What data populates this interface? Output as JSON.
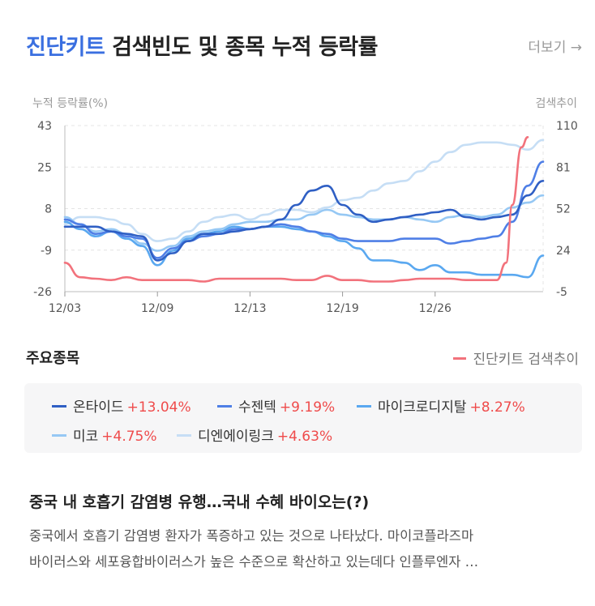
{
  "header": {
    "keyword": "진단키트",
    "title_rest": "검색빈도 및 종목 누적 등락률",
    "more_label": "더보기 →"
  },
  "colors": {
    "keyword": "#3a6fe0",
    "search_trend": "#f2727c",
    "positive": "#ef4b4b",
    "background_box": "#f6f6f7"
  },
  "chart_data": {
    "type": "line",
    "ylabel": "누적 등락률(%)",
    "y2label": "검색추이",
    "ylim": [
      -26,
      43
    ],
    "y2lim": [
      -5,
      110
    ],
    "yticks": [
      "43",
      "25",
      "8",
      "-9",
      "-26"
    ],
    "y2ticks": [
      "110",
      "81",
      "52",
      "24",
      "-5"
    ],
    "xlim": [
      0,
      31
    ],
    "xticks": [
      {
        "x": 0,
        "label": "12/03"
      },
      {
        "x": 6,
        "label": "12/09"
      },
      {
        "x": 12,
        "label": "12/13"
      },
      {
        "x": 18,
        "label": "12/19"
      },
      {
        "x": 24,
        "label": "12/26"
      }
    ],
    "grid": true,
    "series": [
      {
        "name": "온타이드",
        "change": "+13.04%",
        "color": "#2f5fc4",
        "axis": "left",
        "x": [
          0,
          1,
          2,
          3,
          4,
          5,
          6,
          7,
          8,
          9,
          10,
          11,
          12,
          13,
          14,
          15,
          16,
          17,
          18,
          19,
          20,
          21,
          22,
          23,
          24,
          25,
          26,
          27,
          28,
          29,
          30,
          31
        ],
        "y": [
          1,
          1,
          1,
          -1,
          -2,
          -3,
          -13,
          -10,
          -5,
          -2,
          -2,
          -1,
          0,
          1,
          4,
          10,
          16,
          18,
          10,
          6,
          3,
          4,
          5,
          6,
          7,
          8,
          5,
          4,
          5,
          6,
          14,
          20
        ]
      },
      {
        "name": "수젠텍",
        "change": "+9.19%",
        "color": "#4f7fe6",
        "axis": "left",
        "x": [
          0,
          1,
          2,
          3,
          4,
          5,
          6,
          7,
          8,
          9,
          10,
          11,
          12,
          13,
          14,
          15,
          16,
          17,
          18,
          19,
          20,
          21,
          22,
          23,
          24,
          25,
          26,
          27,
          28,
          29,
          30,
          31
        ],
        "y": [
          4,
          2,
          -2,
          -1,
          -3,
          -4,
          -12,
          -8,
          -5,
          -3,
          -2,
          0,
          0,
          1,
          2,
          1,
          -1,
          -2,
          -4,
          -5,
          -5,
          -5,
          -4,
          -4,
          -4,
          -6,
          -5,
          -4,
          -3,
          3,
          18,
          28
        ]
      },
      {
        "name": "마이크로디지탈",
        "change": "+8.27%",
        "color": "#5aa8f0",
        "axis": "left",
        "x": [
          0,
          1,
          2,
          3,
          4,
          5,
          6,
          7,
          8,
          9,
          10,
          11,
          12,
          13,
          14,
          15,
          16,
          17,
          18,
          19,
          20,
          21,
          22,
          23,
          24,
          25,
          26,
          27,
          28,
          29,
          30,
          31
        ],
        "y": [
          3,
          0,
          -3,
          -1,
          -4,
          -7,
          -15,
          -9,
          -4,
          -2,
          -1,
          1,
          0,
          1,
          1,
          0,
          -1,
          -3,
          -5,
          -8,
          -13,
          -13,
          -14,
          -17,
          -15,
          -18,
          -18,
          -19,
          -19,
          -19,
          -20,
          -11
        ]
      },
      {
        "name": "미코",
        "change": "+4.75%",
        "color": "#96c8f4",
        "axis": "left",
        "x": [
          0,
          1,
          2,
          3,
          4,
          5,
          6,
          7,
          8,
          9,
          10,
          11,
          12,
          13,
          14,
          15,
          16,
          17,
          18,
          19,
          20,
          21,
          22,
          23,
          24,
          25,
          26,
          27,
          28,
          29,
          30,
          31
        ],
        "y": [
          5,
          2,
          -1,
          0,
          -2,
          -6,
          -9,
          -7,
          -3,
          -1,
          0,
          2,
          3,
          3,
          4,
          4,
          6,
          8,
          6,
          5,
          4,
          4,
          5,
          4,
          3,
          5,
          6,
          5,
          6,
          9,
          11,
          14
        ]
      },
      {
        "name": "디엔에이링크",
        "change": "+4.63%",
        "color": "#c6def5",
        "axis": "left",
        "x": [
          0,
          1,
          2,
          3,
          4,
          5,
          6,
          7,
          8,
          9,
          10,
          11,
          12,
          13,
          14,
          15,
          16,
          17,
          18,
          19,
          20,
          21,
          22,
          23,
          24,
          25,
          26,
          27,
          28,
          29,
          30,
          31
        ],
        "y": [
          2,
          5,
          5,
          4,
          2,
          -2,
          -5,
          -4,
          -1,
          3,
          5,
          6,
          4,
          6,
          8,
          8,
          7,
          9,
          12,
          13,
          16,
          19,
          20,
          24,
          28,
          32,
          35,
          36,
          36,
          35,
          33,
          37
        ]
      },
      {
        "name": "진단키트 검색추이",
        "color": "#f2727c",
        "axis": "right",
        "x": [
          0,
          1,
          2,
          3,
          4,
          5,
          6,
          7,
          8,
          9,
          10,
          11,
          12,
          13,
          14,
          15,
          16,
          17,
          18,
          19,
          20,
          21,
          22,
          23,
          24,
          25,
          26,
          27,
          28,
          28.6,
          29,
          29.6,
          30
        ],
        "y": [
          15,
          5,
          4,
          3,
          5,
          3,
          3,
          3,
          3,
          2,
          4,
          4,
          4,
          4,
          4,
          3,
          3,
          6,
          3,
          3,
          2,
          2,
          3,
          4,
          4,
          4,
          3,
          3,
          3,
          15,
          55,
          95,
          102
        ]
      }
    ]
  },
  "section": {
    "title": "주요종목",
    "search_legend": "진단키트 검색추이"
  },
  "stocks": [
    {
      "name": "온타이드",
      "change": "+13.04%"
    },
    {
      "name": "수젠텍",
      "change": "+9.19%"
    },
    {
      "name": "마이크로디지탈",
      "change": "+8.27%"
    },
    {
      "name": "미코",
      "change": "+4.75%"
    },
    {
      "name": "디엔에이링크",
      "change": "+4.63%"
    }
  ],
  "news": {
    "title": "중국 내 호흡기 감염병 유행…국내 수혜 바이오는(?)",
    "body_line1": "중국에서 호흡기 감염병 환자가 폭증하고 있는 것으로 나타났다. 마이코플라즈마",
    "body_line2": "바이러스와 세포융합바이러스가 높은 수준으로 확산하고 있는데다 인플루엔자 …"
  }
}
